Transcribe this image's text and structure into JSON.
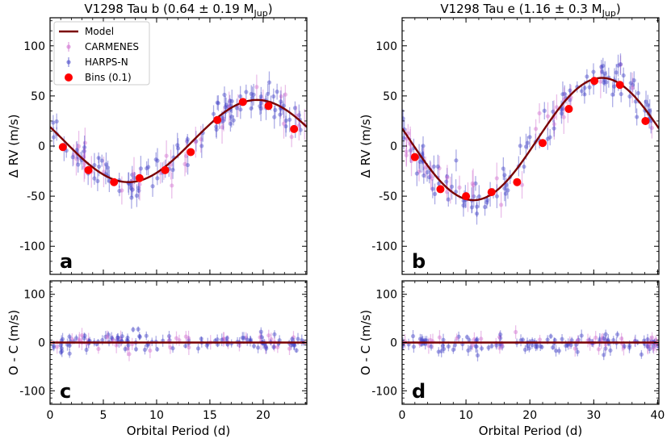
{
  "chart_data": [
    {
      "panel": "a",
      "type": "scatter",
      "title_main": "V1298 Tau b (0.64 ± 0.19 M",
      "title_sub": "Jup",
      "title_end": ")",
      "xlabel": "",
      "ylabel": "Δ RV (m/s)",
      "xlim": [
        0,
        24.1
      ],
      "ylim": [
        -128,
        128
      ],
      "xticks": [
        0,
        5,
        10,
        15,
        20
      ],
      "yticks": [
        -100,
        -50,
        0,
        50,
        100
      ],
      "model": {
        "name": "Model",
        "period": 24.1,
        "amplitude": 41,
        "phase_deg": 160,
        "offset": 5
      },
      "bins": {
        "name": "Bins (0.1)",
        "x": [
          1.2,
          3.6,
          6.0,
          8.4,
          10.8,
          13.2,
          15.7,
          18.1,
          20.5,
          22.9
        ],
        "y": [
          -1,
          -24,
          -36,
          -32,
          -24,
          -6,
          26,
          44,
          40,
          17
        ]
      },
      "letter": "a",
      "legend": [
        "Model",
        "CARMENES",
        "HARPS-N",
        "Bins (0.1)"
      ]
    },
    {
      "panel": "b",
      "type": "scatter",
      "title_main": "V1298 Tau e (1.16 ± 0.3 M",
      "title_sub": "Jup",
      "title_end": ")",
      "xlabel": "",
      "ylabel": "Δ RV (m/s)",
      "xlim": [
        0,
        40.2
      ],
      "ylim": [
        -128,
        128
      ],
      "xticks": [
        0,
        10,
        20,
        30,
        40
      ],
      "yticks": [
        -100,
        -50,
        0,
        50,
        100
      ],
      "model": {
        "name": "Model",
        "period": 40.2,
        "amplitude": 61,
        "phase_deg": 170,
        "offset": 7
      },
      "bins": {
        "name": "Bins (0.1)",
        "x": [
          2.0,
          6.0,
          10.0,
          14.0,
          18.0,
          22.0,
          26.1,
          30.1,
          34.1,
          38.1
        ],
        "y": [
          -11,
          -43,
          -50,
          -46,
          -36,
          3,
          37,
          65,
          61,
          25
        ]
      },
      "letter": "b"
    },
    {
      "panel": "c",
      "type": "scatter",
      "xlabel": "Orbital Period (d)",
      "ylabel": "O - C (m/s)",
      "xlim": [
        0,
        24.1
      ],
      "ylim": [
        -128,
        128
      ],
      "xticks": [
        0,
        5,
        10,
        15,
        20
      ],
      "yticks": [
        -100,
        0,
        100
      ],
      "letter": "c"
    },
    {
      "panel": "d",
      "type": "scatter",
      "xlabel": "Orbital Period (d)",
      "ylabel": "O - C (m/s)",
      "xlim": [
        0,
        40.2
      ],
      "ylim": [
        -128,
        128
      ],
      "xticks": [
        0,
        10,
        20,
        30,
        40
      ],
      "yticks": [
        -100,
        0,
        100
      ],
      "letter": "d"
    }
  ],
  "colors": {
    "model": "#7a0000",
    "carmenes": "#d070d0",
    "harps": "#4848c8",
    "bins": "#ff0000"
  }
}
